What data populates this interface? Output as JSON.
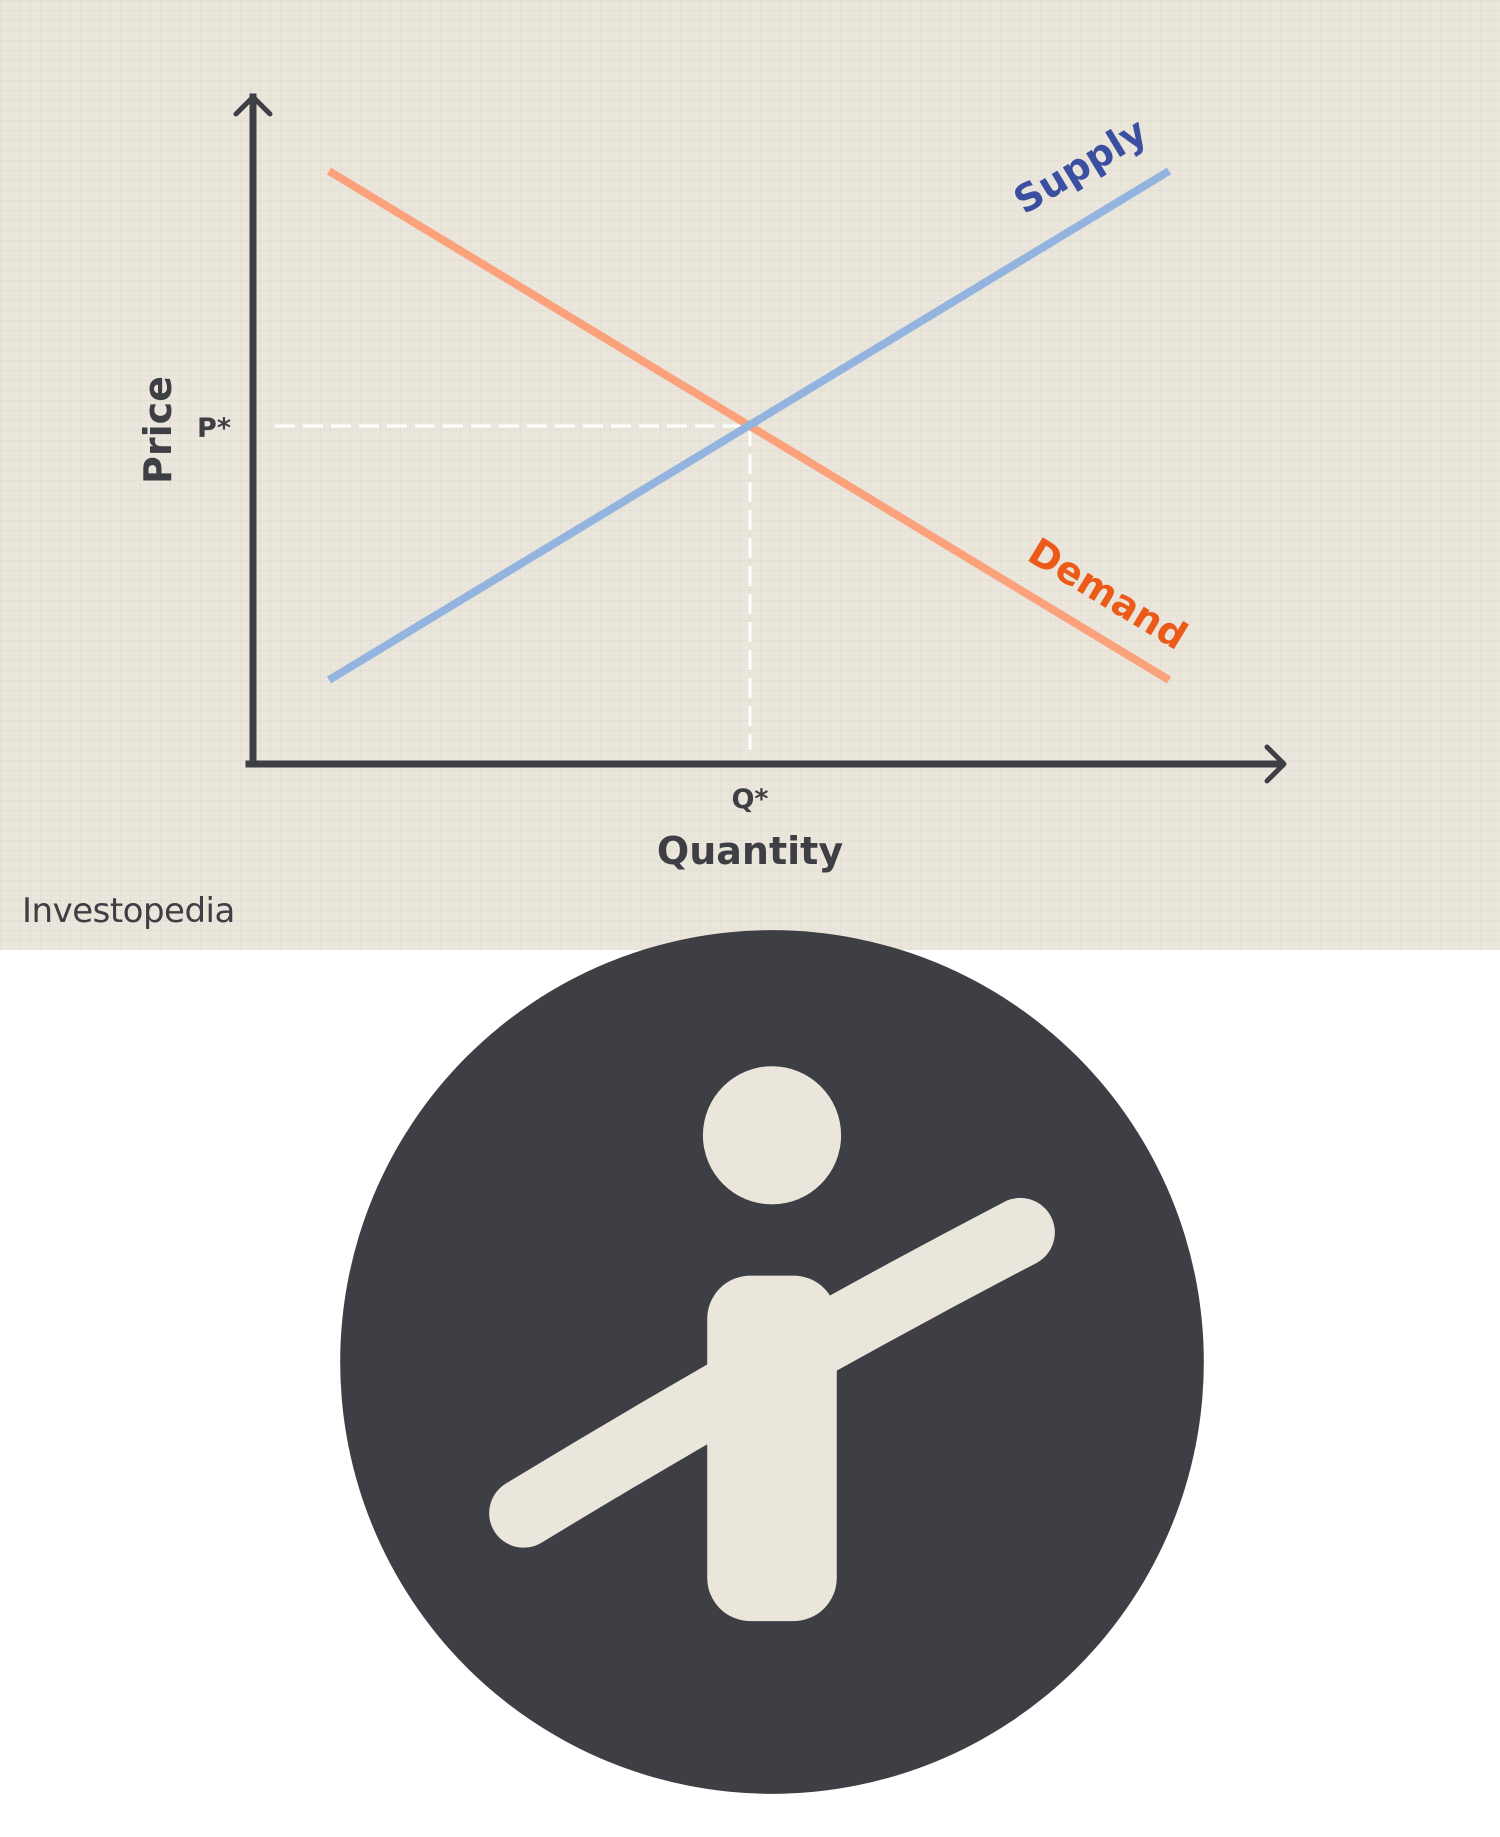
{
  "diagram": {
    "y_axis_label": "Price",
    "x_axis_label": "Quantity",
    "equilibrium_price_label": "P*",
    "equilibrium_quantity_label": "Q*",
    "supply_label": "Supply",
    "demand_label": "Demand"
  },
  "colors": {
    "background": "#ebe6dc",
    "axis": "#3e3f44",
    "supply_line": "#94b4e0",
    "supply_text": "#3b4fa0",
    "demand_line": "#fba27c",
    "demand_text": "#ec5a1a",
    "equilibrium_guides": "#ffffff"
  },
  "brand": {
    "name": "Investopedia",
    "logo_icon": "investopedia-logo-icon"
  }
}
